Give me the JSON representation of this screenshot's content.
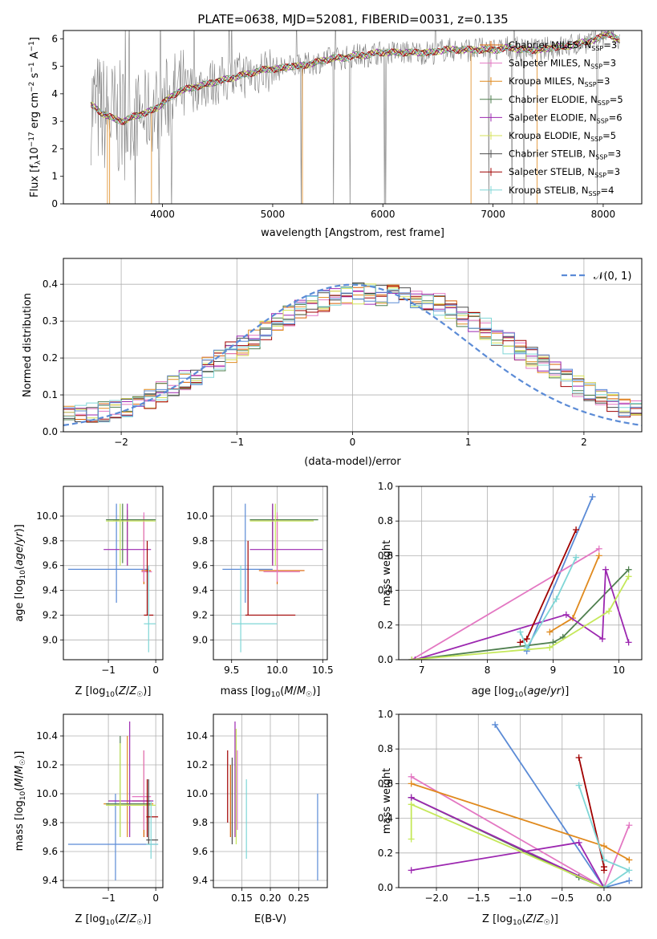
{
  "title": "PLATE=0638, MJD=52081, FIBERID=0031, z=0.135",
  "colors": {
    "c_miles": "#d95f02",
    "s_miles": "#e377c2",
    "k_miles": "#e08a1e",
    "c_elodie": "#4f7f4f",
    "s_elodie": "#9c27b0",
    "k_elodie": "#d4e157",
    "c_stelib": "#4d4d4d",
    "s_stelib": "#a00000",
    "k_stelib": "#7fd6d6",
    "data": "#808080",
    "gauss": "#5b8bd6",
    "blue": "#5b8bd6",
    "lime": "#c5e85a"
  },
  "legend_spectrum": [
    {
      "name": "Chabrier MILES, N",
      "sub": "SSP",
      "tail": "=3",
      "color_key": "c_miles"
    },
    {
      "name": "Salpeter MILES, N",
      "sub": "SSP",
      "tail": "=3",
      "color_key": "s_miles"
    },
    {
      "name": "Kroupa MILES, N",
      "sub": "SSP",
      "tail": "=3",
      "color_key": "k_miles"
    },
    {
      "name": "Chabrier ELODIE, N",
      "sub": "SSP",
      "tail": "=5",
      "color_key": "c_elodie"
    },
    {
      "name": "Salpeter ELODIE, N",
      "sub": "SSP",
      "tail": "=6",
      "color_key": "s_elodie"
    },
    {
      "name": "Kroupa ELODIE, N",
      "sub": "SSP",
      "tail": "=5",
      "color_key": "k_elodie"
    },
    {
      "name": "Chabrier STELIB, N",
      "sub": "SSP",
      "tail": "=3",
      "color_key": "c_stelib"
    },
    {
      "name": "Salpeter STELIB, N",
      "sub": "SSP",
      "tail": "=3",
      "color_key": "s_stelib"
    },
    {
      "name": "Kroupa STELIB, N",
      "sub": "SSP",
      "tail": "=4",
      "color_key": "k_stelib"
    }
  ],
  "legend_hist": "𝒩(0, 1)",
  "chart_data": [
    {
      "id": "spectrum",
      "type": "line",
      "xlabel": "wavelength [Angstrom, rest frame]",
      "ylabel": "Flux [f_λ 10^-17 erg cm^-2 s^-1 A^-1]",
      "xlim": [
        3100,
        8350
      ],
      "ylim": [
        0,
        6.3
      ],
      "xticks": [
        4000,
        5000,
        6000,
        7000,
        8000
      ],
      "yticks": [
        0,
        1,
        2,
        3,
        4,
        5,
        6
      ],
      "model_continuum": {
        "x": [
          3350,
          3450,
          3550,
          3650,
          3750,
          3850,
          3950,
          4050,
          4150,
          4250,
          4350,
          4450,
          4550,
          4650,
          4750,
          4850,
          4950,
          5050,
          5150,
          5250,
          5350,
          5450,
          5550,
          5650,
          5750,
          5850,
          5950,
          6050,
          6150,
          6250,
          6350,
          6450,
          6550,
          6650,
          6750,
          6850,
          6950,
          7050,
          7150,
          7250,
          7350,
          7450,
          7550,
          7650,
          7750,
          7850,
          7950,
          8050,
          8150
        ],
        "y": [
          3.6,
          3.3,
          3.1,
          3.0,
          3.2,
          3.3,
          3.5,
          3.8,
          4.1,
          4.2,
          4.3,
          4.4,
          4.5,
          4.6,
          4.7,
          4.8,
          4.9,
          4.9,
          5.0,
          5.0,
          5.1,
          5.2,
          5.3,
          5.3,
          5.4,
          5.4,
          5.5,
          5.5,
          5.5,
          5.5,
          5.5,
          5.5,
          5.6,
          5.6,
          5.6,
          5.6,
          5.6,
          5.6,
          5.7,
          5.6,
          5.6,
          5.6,
          5.7,
          5.7,
          5.8,
          5.9,
          6.0,
          6.2,
          5.9
        ]
      }
    },
    {
      "id": "residuals",
      "type": "line",
      "xlabel": "(data-model)/error",
      "ylabel": "Normed distribution",
      "xlim": [
        -2.5,
        2.5
      ],
      "ylim": [
        0,
        0.47
      ],
      "xticks": [
        -2,
        -1,
        0,
        1,
        2
      ],
      "yticks": [
        0.0,
        0.1,
        0.2,
        0.3,
        0.4
      ],
      "bin_width": 0.1,
      "hist_base": [
        0.04,
        0.045,
        0.05,
        0.055,
        0.06,
        0.065,
        0.075,
        0.09,
        0.11,
        0.125,
        0.14,
        0.155,
        0.175,
        0.195,
        0.215,
        0.235,
        0.255,
        0.275,
        0.3,
        0.315,
        0.33,
        0.345,
        0.355,
        0.365,
        0.37,
        0.375,
        0.375,
        0.37,
        0.37,
        0.365,
        0.36,
        0.355,
        0.345,
        0.33,
        0.315,
        0.3,
        0.28,
        0.26,
        0.24,
        0.22,
        0.2,
        0.18,
        0.16,
        0.14,
        0.125,
        0.11,
        0.095,
        0.08,
        0.065,
        0.055
      ]
    },
    {
      "id": "age-vs-z",
      "type": "scatter",
      "xlabel": "Z [log10(Z/Z☉)]",
      "ylabel": "age [log10(age/yr)]",
      "xlim": [
        -1.95,
        0.15
      ],
      "ylim": [
        8.84,
        10.24
      ],
      "xticks": [
        -1,
        0
      ],
      "yticks": [
        9.0,
        9.2,
        9.4,
        9.6,
        9.8,
        10.0
      ],
      "points": [
        {
          "color_key": "blue",
          "x": -0.83,
          "y": 9.57,
          "xl": -1.85,
          "xh": -0.15,
          "yl": 9.3,
          "yh": 10.1
        },
        {
          "color_key": "c_miles",
          "x": -0.25,
          "y": 9.56,
          "xl": -0.3,
          "xh": -0.1,
          "yl": 9.45,
          "yh": 10.0
        },
        {
          "color_key": "s_miles",
          "x": -0.25,
          "y": 9.55,
          "xl": -0.3,
          "xh": -0.08,
          "yl": 9.47,
          "yh": 10.03
        },
        {
          "color_key": "k_miles",
          "x": -0.6,
          "y": 9.97,
          "xl": -0.9,
          "xh": -0.05,
          "yl": 9.6,
          "yh": 10.05
        },
        {
          "color_key": "c_elodie",
          "x": -0.7,
          "y": 9.97,
          "xl": -1.05,
          "xh": 0.0,
          "yl": 9.62,
          "yh": 10.1
        },
        {
          "color_key": "s_elodie",
          "x": -0.6,
          "y": 9.73,
          "xl": -1.1,
          "xh": -0.1,
          "yl": 9.6,
          "yh": 10.1
        },
        {
          "color_key": "lime",
          "x": -0.75,
          "y": 9.96,
          "xl": -1.05,
          "xh": 0.0,
          "yl": 9.6,
          "yh": 10.1
        },
        {
          "color_key": "s_stelib",
          "x": -0.18,
          "y": 9.2,
          "xl": -0.25,
          "xh": -0.05,
          "yl": 9.2,
          "yh": 9.8
        },
        {
          "color_key": "k_stelib",
          "x": -0.15,
          "y": 9.13,
          "xl": -0.25,
          "xh": 0.0,
          "yl": 8.9,
          "yh": 9.6
        }
      ]
    },
    {
      "id": "age-vs-mass",
      "type": "scatter",
      "xlabel": "mass [log10(M/M☉)]",
      "ylabel": "",
      "xlim": [
        9.3,
        10.55
      ],
      "ylim": [
        8.84,
        10.24
      ],
      "xticks": [
        9.5,
        10.0,
        10.5
      ],
      "yticks": [
        9.0,
        9.2,
        9.4,
        9.6,
        9.8,
        10.0
      ],
      "points": [
        {
          "color_key": "blue",
          "x": 9.65,
          "y": 9.57,
          "xl": 9.4,
          "xh": 9.95,
          "yl": 9.3,
          "yh": 10.1
        },
        {
          "color_key": "c_miles",
          "x": 10.0,
          "y": 9.56,
          "xl": 9.8,
          "xh": 10.3,
          "yl": 9.45,
          "yh": 10.0
        },
        {
          "color_key": "s_miles",
          "x": 10.0,
          "y": 9.55,
          "xl": 9.85,
          "xh": 10.25,
          "yl": 9.47,
          "yh": 10.03
        },
        {
          "color_key": "k_miles",
          "x": 9.95,
          "y": 9.97,
          "xl": 9.7,
          "xh": 10.4,
          "yl": 9.6,
          "yh": 10.05
        },
        {
          "color_key": "c_elodie",
          "x": 9.95,
          "y": 9.97,
          "xl": 9.7,
          "xh": 10.45,
          "yl": 9.62,
          "yh": 10.1
        },
        {
          "color_key": "s_elodie",
          "x": 9.95,
          "y": 9.73,
          "xl": 9.7,
          "xh": 10.5,
          "yl": 9.6,
          "yh": 10.1
        },
        {
          "color_key": "lime",
          "x": 9.98,
          "y": 9.96,
          "xl": 9.7,
          "xh": 10.4,
          "yl": 9.6,
          "yh": 10.1
        },
        {
          "color_key": "s_stelib",
          "x": 9.68,
          "y": 9.2,
          "xl": 9.65,
          "xh": 10.2,
          "yl": 9.2,
          "yh": 9.8
        },
        {
          "color_key": "k_stelib",
          "x": 9.6,
          "y": 9.13,
          "xl": 9.5,
          "xh": 10.0,
          "yl": 8.9,
          "yh": 9.6
        }
      ]
    },
    {
      "id": "weight-vs-age",
      "type": "line",
      "xlabel": "age [log10(age/yr)]",
      "ylabel": "mass weight",
      "xlim": [
        6.65,
        10.35
      ],
      "ylim": [
        0,
        1.0
      ],
      "xticks": [
        7,
        8,
        9,
        10
      ],
      "yticks": [
        0.0,
        0.2,
        0.4,
        0.6,
        0.8,
        1.0
      ],
      "series": [
        {
          "color_key": "blue",
          "x": [
            8.6,
            9.6
          ],
          "y": [
            0.05,
            0.94
          ]
        },
        {
          "color_key": "s_miles",
          "x": [
            6.85,
            9.7
          ],
          "y": [
            0.0,
            0.64
          ]
        },
        {
          "color_key": "k_miles",
          "x": [
            8.95,
            9.3,
            9.7
          ],
          "y": [
            0.16,
            0.24,
            0.6
          ]
        },
        {
          "color_key": "c_elodie",
          "x": [
            6.85,
            9.0,
            9.15,
            10.15
          ],
          "y": [
            0.0,
            0.1,
            0.13,
            0.52
          ]
        },
        {
          "color_key": "s_elodie",
          "x": [
            6.9,
            9.2,
            9.75,
            9.8,
            10.15
          ],
          "y": [
            0.0,
            0.26,
            0.12,
            0.52,
            0.1
          ]
        },
        {
          "color_key": "lime",
          "x": [
            6.85,
            8.95,
            9.85,
            10.15
          ],
          "y": [
            0.0,
            0.07,
            0.28,
            0.48
          ]
        },
        {
          "color_key": "s_stelib",
          "x": [
            8.5,
            8.6,
            9.35
          ],
          "y": [
            0.1,
            0.12,
            0.75
          ]
        },
        {
          "color_key": "k_stelib",
          "x": [
            8.5,
            8.6,
            9.05,
            9.35
          ],
          "y": [
            0.16,
            0.07,
            0.35,
            0.59
          ]
        }
      ]
    },
    {
      "id": "mass-vs-z",
      "type": "scatter",
      "xlabel": "Z [log10(Z/Z☉)]",
      "ylabel": "mass [log10(M/M☉)]",
      "xlim": [
        -1.95,
        0.15
      ],
      "ylim": [
        9.35,
        10.55
      ],
      "xticks": [
        -1,
        0
      ],
      "yticks": [
        9.4,
        9.6,
        9.8,
        10.0,
        10.2,
        10.4
      ],
      "points": [
        {
          "color_key": "blue",
          "x": -0.85,
          "y": 9.65,
          "xl": -1.85,
          "xh": 0.05,
          "yl": 9.4,
          "yh": 10.0
        },
        {
          "color_key": "c_miles",
          "x": -0.25,
          "y": 9.95,
          "xl": -0.5,
          "xh": -0.1,
          "yl": 9.7,
          "yh": 10.3
        },
        {
          "color_key": "s_miles",
          "x": -0.25,
          "y": 9.98,
          "xl": -0.5,
          "xh": -0.1,
          "yl": 9.75,
          "yh": 10.3
        },
        {
          "color_key": "k_miles",
          "x": -0.6,
          "y": 9.93,
          "xl": -1.1,
          "xh": -0.05,
          "yl": 9.7,
          "yh": 10.4
        },
        {
          "color_key": "c_elodie",
          "x": -0.75,
          "y": 9.93,
          "xl": -1.05,
          "xh": -0.1,
          "yl": 9.7,
          "yh": 10.4
        },
        {
          "color_key": "s_elodie",
          "x": -0.55,
          "y": 9.95,
          "xl": -1.0,
          "xh": -0.05,
          "yl": 9.7,
          "yh": 10.5
        },
        {
          "color_key": "lime",
          "x": -0.75,
          "y": 9.92,
          "xl": -1.05,
          "xh": 0.0,
          "yl": 9.7,
          "yh": 10.35
        },
        {
          "color_key": "c_stelib",
          "x": -0.15,
          "y": 9.68,
          "xl": -0.2,
          "xh": 0.05,
          "yl": 9.65,
          "yh": 10.1
        },
        {
          "color_key": "s_stelib",
          "x": -0.18,
          "y": 9.84,
          "xl": -0.2,
          "xh": 0.05,
          "yl": 9.7,
          "yh": 10.1
        },
        {
          "color_key": "k_stelib",
          "x": -0.1,
          "y": 9.65,
          "xl": -0.2,
          "xh": 0.05,
          "yl": 9.55,
          "yh": 9.95
        }
      ]
    },
    {
      "id": "mass-vs-ebv",
      "type": "scatter",
      "xlabel": "E(B-V)",
      "ylabel": "",
      "xlim": [
        0.1,
        0.3
      ],
      "ylim": [
        9.35,
        10.55
      ],
      "xticks": [
        0.15,
        0.2,
        0.25
      ],
      "yticks": [
        9.4,
        9.6,
        9.8,
        10.0,
        10.2,
        10.4
      ],
      "vlines": [
        {
          "color_key": "s_stelib",
          "x": 0.125,
          "yl": 9.8,
          "yh": 10.3
        },
        {
          "color_key": "c_miles",
          "x": 0.13,
          "yl": 9.7,
          "yh": 10.2
        },
        {
          "color_key": "c_stelib",
          "x": 0.133,
          "yl": 9.65,
          "yh": 10.25
        },
        {
          "color_key": "s_elodie",
          "x": 0.138,
          "yl": 9.7,
          "yh": 10.5
        },
        {
          "color_key": "lime",
          "x": 0.14,
          "yl": 9.65,
          "yh": 10.45
        },
        {
          "color_key": "s_miles",
          "x": 0.142,
          "yl": 9.75,
          "yh": 10.3
        },
        {
          "color_key": "k_stelib",
          "x": 0.158,
          "yl": 9.55,
          "yh": 10.1
        },
        {
          "color_key": "blue",
          "x": 0.283,
          "yl": 9.4,
          "yh": 10.0
        }
      ]
    },
    {
      "id": "weight-vs-z",
      "type": "line",
      "xlabel": "Z [log10(Z/Z☉)]",
      "ylabel": "mass weight",
      "xlim": [
        -2.45,
        0.45
      ],
      "ylim": [
        0,
        1.0
      ],
      "xticks": [
        -2.0,
        -1.5,
        -1.0,
        -0.5,
        0.0
      ],
      "yticks": [
        0.0,
        0.2,
        0.4,
        0.6,
        0.8,
        1.0
      ],
      "series": [
        {
          "color_key": "blue",
          "x": [
            -1.3,
            0.0,
            0.3
          ],
          "y": [
            0.94,
            0.0,
            0.04
          ]
        },
        {
          "color_key": "s_miles",
          "x": [
            -2.3,
            0.0,
            0.3
          ],
          "y": [
            0.64,
            0.0,
            0.36
          ]
        },
        {
          "color_key": "k_miles",
          "x": [
            -2.3,
            0.0,
            0.3
          ],
          "y": [
            0.6,
            0.24,
            0.16
          ]
        },
        {
          "color_key": "c_elodie",
          "x": [
            -2.3,
            -0.3,
            0.0
          ],
          "y": [
            0.52,
            0.06,
            0.0
          ]
        },
        {
          "color_key": "s_elodie",
          "x": [
            -2.3,
            -0.3,
            0.0,
            -2.3
          ],
          "y": [
            0.1,
            0.26,
            0.0,
            0.52
          ]
        },
        {
          "color_key": "lime",
          "x": [
            -2.3,
            -2.3,
            0.0
          ],
          "y": [
            0.28,
            0.48,
            0.0
          ]
        },
        {
          "color_key": "s_stelib",
          "x": [
            -0.3,
            0.0,
            0.0
          ],
          "y": [
            0.75,
            0.12,
            0.1
          ]
        },
        {
          "color_key": "k_stelib",
          "x": [
            -0.3,
            0.0,
            0.3,
            0.0
          ],
          "y": [
            0.59,
            0.16,
            0.1,
            0.0
          ]
        }
      ]
    }
  ]
}
